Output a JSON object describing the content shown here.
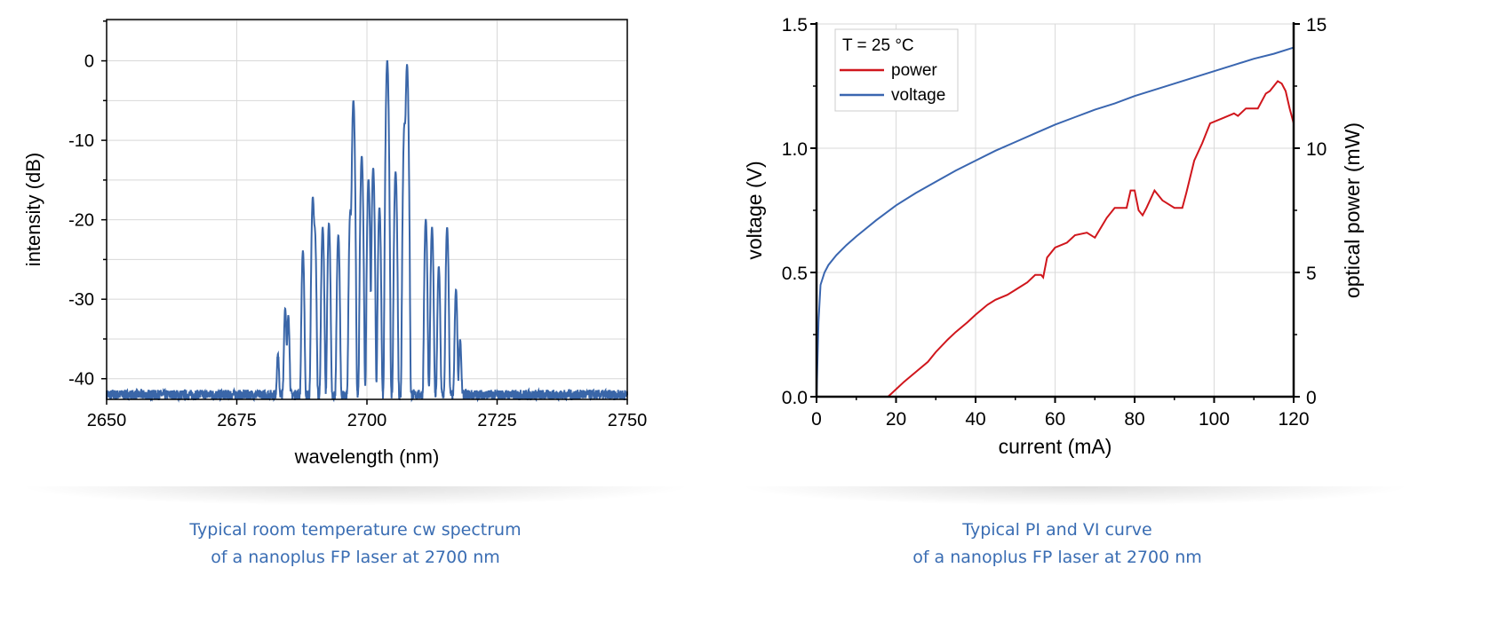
{
  "chart_data": [
    {
      "type": "line",
      "title": "",
      "xlabel": "wavelength (nm)",
      "ylabel": "intensity (dB)",
      "xlim": [
        2650,
        2750
      ],
      "ylim": [
        -42.6,
        5.2
      ],
      "xticks": [
        2650,
        2675,
        2700,
        2725,
        2750
      ],
      "yticks": [
        0,
        -10,
        -20,
        -30,
        -40
      ],
      "grid": true,
      "noise_floor_db": -42,
      "line_color": "#3a66a8",
      "modes": [
        {
          "nm": 2682.9,
          "db": -38.5
        },
        {
          "nm": 2684.3,
          "db": -31.5
        },
        {
          "nm": 2684.9,
          "db": -32.5
        },
        {
          "nm": 2687.7,
          "db": -24
        },
        {
          "nm": 2689.6,
          "db": -17.2
        },
        {
          "nm": 2690.0,
          "db": -21.5
        },
        {
          "nm": 2691.5,
          "db": -21
        },
        {
          "nm": 2692.7,
          "db": -20.5
        },
        {
          "nm": 2694.5,
          "db": -22
        },
        {
          "nm": 2696.8,
          "db": -19
        },
        {
          "nm": 2697.4,
          "db": -5
        },
        {
          "nm": 2699.0,
          "db": -12
        },
        {
          "nm": 2700.3,
          "db": -15
        },
        {
          "nm": 2701.2,
          "db": -13.5
        },
        {
          "nm": 2702.4,
          "db": -18.5
        },
        {
          "nm": 2703.9,
          "db": 0
        },
        {
          "nm": 2705.5,
          "db": -14
        },
        {
          "nm": 2707.2,
          "db": -8
        },
        {
          "nm": 2707.7,
          "db": -0.5
        },
        {
          "nm": 2711.3,
          "db": -20
        },
        {
          "nm": 2712.5,
          "db": -21
        },
        {
          "nm": 2713.8,
          "db": -26
        },
        {
          "nm": 2715.4,
          "db": -21
        },
        {
          "nm": 2717.1,
          "db": -29
        },
        {
          "nm": 2717.9,
          "db": -36
        }
      ]
    },
    {
      "type": "line",
      "title": "",
      "xlabel": "current (mA)",
      "ylabel": "voltage (V)",
      "y2label": "optical power (mW)",
      "xlim": [
        0,
        120
      ],
      "ylim": [
        0,
        1.5
      ],
      "y2lim": [
        0,
        15
      ],
      "xticks": [
        0,
        20,
        40,
        60,
        80,
        100,
        120
      ],
      "yticks": [
        0,
        0.5,
        1.0,
        1.5
      ],
      "y2ticks": [
        0,
        5,
        10,
        15
      ],
      "ytick_labels": [
        "0.0",
        "0.5",
        "1.0",
        "1.5"
      ],
      "grid": true,
      "legend": {
        "title": "T = 25 °C",
        "placement": "top-left"
      },
      "series": [
        {
          "name": "power",
          "axis": "right",
          "color": "#d0161c",
          "points": [
            [
              0,
              0
            ],
            [
              18,
              0
            ],
            [
              20,
              0.3
            ],
            [
              22,
              0.6
            ],
            [
              25,
              1.0
            ],
            [
              28,
              1.4
            ],
            [
              30,
              1.8
            ],
            [
              33,
              2.3
            ],
            [
              35,
              2.6
            ],
            [
              38,
              3.0
            ],
            [
              40,
              3.3
            ],
            [
              43,
              3.7
            ],
            [
              45,
              3.9
            ],
            [
              48,
              4.1
            ],
            [
              50,
              4.3
            ],
            [
              53,
              4.6
            ],
            [
              55,
              4.9
            ],
            [
              56.5,
              4.9
            ],
            [
              57,
              4.8
            ],
            [
              58,
              5.6
            ],
            [
              60,
              6.0
            ],
            [
              63,
              6.2
            ],
            [
              65,
              6.5
            ],
            [
              68,
              6.6
            ],
            [
              70,
              6.4
            ],
            [
              73,
              7.2
            ],
            [
              75,
              7.6
            ],
            [
              77,
              7.6
            ],
            [
              78,
              7.6
            ],
            [
              79,
              8.3
            ],
            [
              80,
              8.3
            ],
            [
              81,
              7.5
            ],
            [
              82,
              7.3
            ],
            [
              83,
              7.6
            ],
            [
              85,
              8.3
            ],
            [
              87,
              7.9
            ],
            [
              90,
              7.6
            ],
            [
              92,
              7.6
            ],
            [
              93,
              8.2
            ],
            [
              95,
              9.5
            ],
            [
              97,
              10.2
            ],
            [
              98,
              10.6
            ],
            [
              99,
              11.0
            ],
            [
              102,
              11.2
            ],
            [
              105,
              11.4
            ],
            [
              106,
              11.3
            ],
            [
              108,
              11.6
            ],
            [
              111,
              11.6
            ],
            [
              113,
              12.2
            ],
            [
              114,
              12.3
            ],
            [
              116,
              12.7
            ],
            [
              117,
              12.6
            ],
            [
              118,
              12.3
            ],
            [
              119,
              11.6
            ],
            [
              120,
              11.0
            ]
          ]
        },
        {
          "name": "voltage",
          "axis": "left",
          "color": "#3a66b0",
          "points": [
            [
              0,
              0
            ],
            [
              0.5,
              0.3
            ],
            [
              1,
              0.45
            ],
            [
              2,
              0.5
            ],
            [
              3,
              0.53
            ],
            [
              5,
              0.57
            ],
            [
              7.5,
              0.61
            ],
            [
              10,
              0.645
            ],
            [
              15,
              0.71
            ],
            [
              20,
              0.77
            ],
            [
              25,
              0.82
            ],
            [
              30,
              0.865
            ],
            [
              35,
              0.91
            ],
            [
              40,
              0.95
            ],
            [
              45,
              0.99
            ],
            [
              50,
              1.025
            ],
            [
              55,
              1.06
            ],
            [
              60,
              1.095
            ],
            [
              65,
              1.125
            ],
            [
              70,
              1.155
            ],
            [
              75,
              1.18
            ],
            [
              80,
              1.21
            ],
            [
              85,
              1.235
            ],
            [
              90,
              1.26
            ],
            [
              95,
              1.285
            ],
            [
              100,
              1.31
            ],
            [
              105,
              1.335
            ],
            [
              110,
              1.36
            ],
            [
              115,
              1.38
            ],
            [
              120,
              1.405
            ]
          ]
        }
      ]
    }
  ],
  "captions": [
    {
      "line1": "Typical room temperature cw spectrum",
      "line2": "of a nanoplus FP laser at 2700 nm"
    },
    {
      "line1": "Typical PI and VI curve",
      "line2": "of a nanoplus FP laser at 2700 nm"
    }
  ]
}
